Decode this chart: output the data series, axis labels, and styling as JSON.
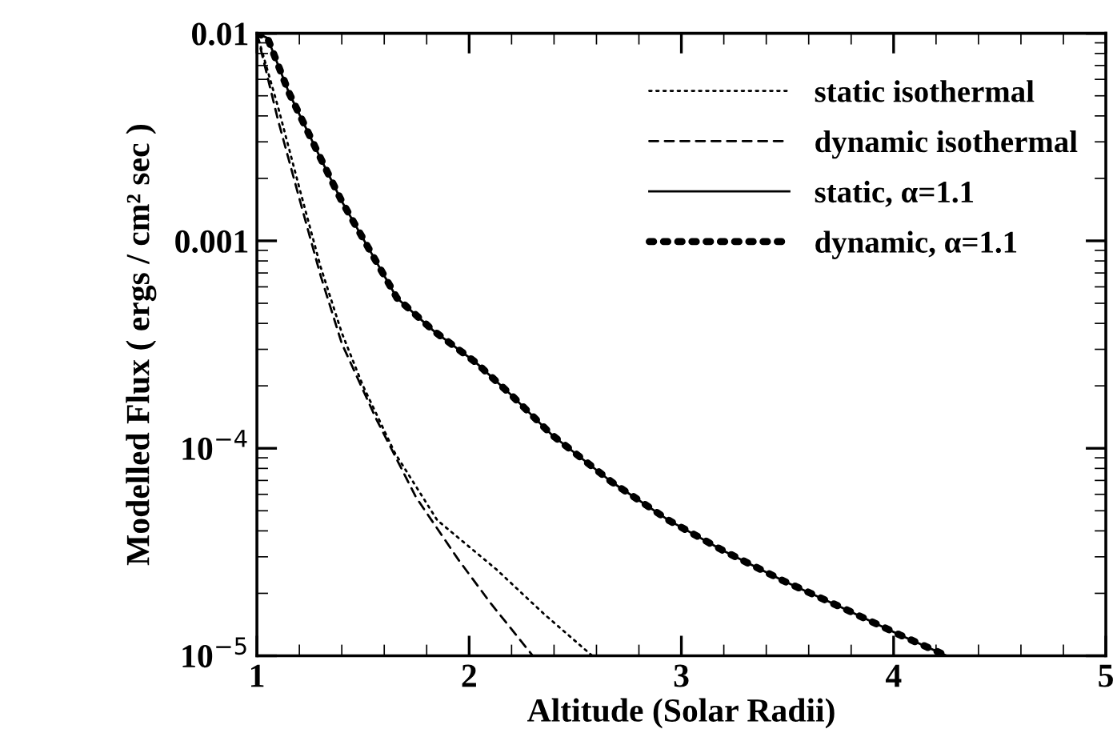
{
  "chart_data": {
    "type": "line",
    "xlabel": "Altitude (Solar Radii)",
    "ylabel": "Modelled Flux ( ergs / cm² sec )",
    "log": "y",
    "xlim": [
      1,
      5
    ],
    "xticks": [
      1,
      2,
      3,
      4,
      5
    ],
    "ylim": [
      1e-05,
      0.01
    ],
    "yticks": [
      {
        "value": 1e-05,
        "label": "10$^{−5}$"
      },
      {
        "value": 0.0001,
        "label": "10$^{−4}$"
      },
      0.001,
      0.01
    ],
    "grid": false,
    "legend": "top right",
    "series": [
      {
        "name": "static isothermal",
        "color": "#000000",
        "line_style": "dotted",
        "x": [
          1.0,
          1.1,
          1.2,
          1.3,
          1.4,
          1.5,
          1.65,
          1.85,
          2.13,
          2.35,
          2.58
        ],
        "values": [
          0.01,
          0.0044,
          0.0018,
          0.00075,
          0.00036,
          0.0002,
          9.5e-05,
          4.5e-05,
          2.6e-05,
          1.6e-05,
          1e-05
        ]
      },
      {
        "name": "dynamic isothermal",
        "color": "#000000",
        "line_style": "dashed",
        "x": [
          1.0,
          1.1,
          1.2,
          1.3,
          1.4,
          1.56,
          1.75,
          1.95,
          2.1,
          2.3
        ],
        "values": [
          0.01,
          0.0038,
          0.0016,
          0.00068,
          0.00032,
          0.00014,
          5.8e-05,
          2.9e-05,
          1.8e-05,
          1e-05
        ]
      },
      {
        "name": "static, α=1.1",
        "color": "#000000",
        "line_style": "solid",
        "x": [
          1.0,
          1.05,
          1.15,
          1.3,
          1.4,
          1.54,
          1.66,
          1.83,
          2.03,
          2.2,
          2.39,
          2.67,
          2.94,
          3.2,
          3.48,
          3.76,
          4.03,
          4.25
        ],
        "values": [
          0.01,
          0.0095,
          0.0052,
          0.0025,
          0.00155,
          0.00087,
          0.00053,
          0.00037,
          0.00026,
          0.00018,
          0.000116,
          6.9e-05,
          4.5e-05,
          3.2e-05,
          2.3e-05,
          1.7e-05,
          1.26e-05,
          1e-05
        ]
      },
      {
        "name": "dynamic, α=1.1",
        "color": "#000000",
        "line_style": "dotted",
        "x": [
          1.0,
          1.05,
          1.15,
          1.3,
          1.4,
          1.54,
          1.66,
          1.83,
          2.03,
          2.2,
          2.39,
          2.67,
          2.94,
          3.2,
          3.48,
          3.76,
          4.03,
          4.25
        ],
        "values": [
          0.01,
          0.0095,
          0.0052,
          0.0025,
          0.00155,
          0.00087,
          0.00053,
          0.00037,
          0.00026,
          0.00018,
          0.000116,
          6.9e-05,
          4.5e-05,
          3.2e-05,
          2.3e-05,
          1.7e-05,
          1.26e-05,
          1e-05
        ]
      }
    ]
  }
}
